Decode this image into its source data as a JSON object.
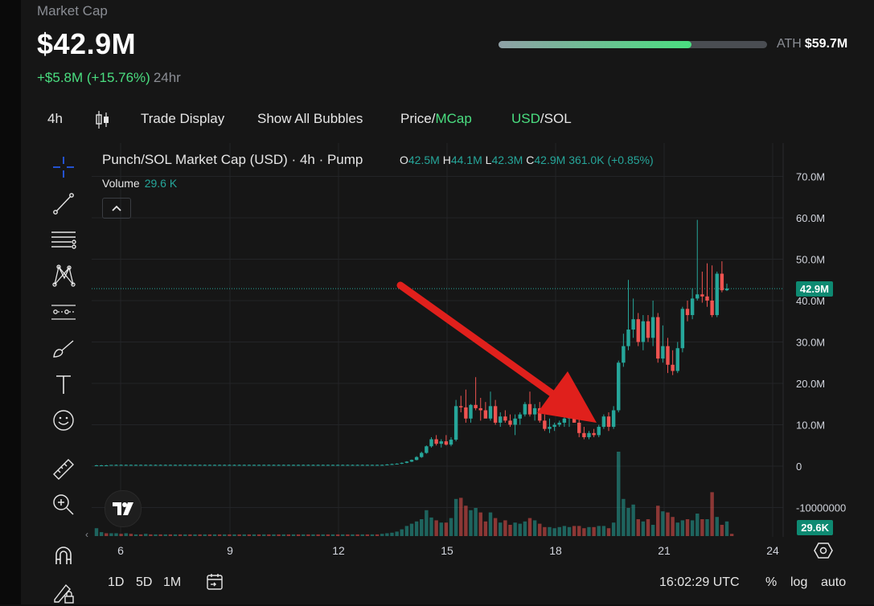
{
  "header": {
    "label": "Market Cap",
    "value": "$42.9M",
    "change": "+$5.8M (+15.76%)",
    "period": "24hr",
    "ath_label": "ATH",
    "ath_value": "$59.7M",
    "ath_progress": 0.72
  },
  "toolbar": {
    "interval": "4h",
    "trade_display": "Trade Display",
    "show_bubbles": "Show All Bubbles",
    "price_label": "Price/",
    "mcap_label": "MCap",
    "usd_label": "USD",
    "sol_label": "/SOL"
  },
  "legend": {
    "title": "Punch/SOL Market Cap (USD) · 4h · Pump",
    "o_label": "O",
    "o": "42.5M",
    "h_label": "H",
    "h": "44.1M",
    "l_label": "L",
    "l": "42.3M",
    "c_label": "C",
    "c": "42.9M",
    "chg": "361.0K (+0.85%)",
    "volume_label": "Volume",
    "volume": "29.6 K"
  },
  "price_tags": {
    "last": "42.9M",
    "volume": "29.6K"
  },
  "bottom": {
    "range_1d": "1D",
    "range_5d": "5D",
    "range_1m": "1M",
    "time": "16:02:29 UTC",
    "pct": "%",
    "log": "log",
    "auto": "auto"
  },
  "colors": {
    "up": "#26a69a",
    "down": "#ef5350",
    "accent": "#4ade80",
    "arrow": "#e0201c"
  },
  "chart_data": {
    "type": "candlestick",
    "x_tick_labels": [
      "6",
      "9",
      "12",
      "15",
      "18",
      "21",
      "24"
    ],
    "y_tick_labels": [
      "70.0M",
      "60.0M",
      "50.0M",
      "40.0M",
      "30.0M",
      "20.0M",
      "10.0M",
      "0",
      "-10000000"
    ],
    "ylim": [
      -15,
      72
    ],
    "last_value": 42.9,
    "candles": [
      [
        0,
        0.2,
        0.3,
        0.1,
        0.2
      ],
      [
        0,
        0.2,
        0.3,
        0.1,
        0.2
      ],
      [
        0,
        0.2,
        0.3,
        0.1,
        0.2
      ],
      [
        0,
        0.2,
        0.3,
        0.1,
        0.3
      ],
      [
        0,
        0.3,
        0.4,
        0.2,
        0.3
      ],
      [
        0,
        0.3,
        0.4,
        0.2,
        0.3
      ],
      [
        0,
        0.3,
        0.4,
        0.2,
        0.3
      ],
      [
        0,
        0.3,
        0.4,
        0.2,
        0.3
      ],
      [
        0,
        0.3,
        0.4,
        0.2,
        0.3
      ],
      [
        0,
        0.3,
        0.4,
        0.2,
        0.3
      ],
      [
        0,
        0.3,
        0.4,
        0.2,
        0.3
      ],
      [
        0,
        0.3,
        0.4,
        0.2,
        0.3
      ],
      [
        0,
        0.3,
        0.4,
        0.2,
        0.3
      ],
      [
        0,
        0.3,
        0.4,
        0.2,
        0.3
      ],
      [
        0,
        0.3,
        0.4,
        0.2,
        0.3
      ],
      [
        0,
        0.3,
        0.4,
        0.2,
        0.3
      ],
      [
        0,
        0.3,
        0.4,
        0.2,
        0.3
      ],
      [
        0,
        0.3,
        0.4,
        0.2,
        0.3
      ],
      [
        0,
        0.3,
        0.4,
        0.2,
        0.3
      ],
      [
        0,
        0.3,
        0.4,
        0.2,
        0.3
      ],
      [
        0,
        0.3,
        0.4,
        0.2,
        0.3
      ],
      [
        0,
        0.3,
        0.4,
        0.2,
        0.3
      ],
      [
        0,
        0.3,
        0.4,
        0.2,
        0.3
      ],
      [
        0,
        0.3,
        0.4,
        0.2,
        0.3
      ],
      [
        0,
        0.3,
        0.4,
        0.2,
        0.3
      ],
      [
        0,
        0.3,
        0.4,
        0.2,
        0.3
      ],
      [
        0,
        0.3,
        0.4,
        0.2,
        0.3
      ],
      [
        0,
        0.3,
        0.4,
        0.2,
        0.3
      ],
      [
        0,
        0.3,
        0.4,
        0.2,
        0.3
      ],
      [
        0,
        0.3,
        0.4,
        0.2,
        0.3
      ],
      [
        0,
        0.3,
        0.4,
        0.2,
        0.3
      ],
      [
        0,
        0.3,
        0.4,
        0.2,
        0.3
      ],
      [
        0,
        0.3,
        0.4,
        0.2,
        0.3
      ],
      [
        0,
        0.3,
        0.4,
        0.2,
        0.3
      ],
      [
        0,
        0.3,
        0.4,
        0.2,
        0.3
      ],
      [
        0,
        0.3,
        0.4,
        0.2,
        0.3
      ],
      [
        0,
        0.3,
        0.4,
        0.2,
        0.3
      ],
      [
        0,
        0.3,
        0.4,
        0.2,
        0.3
      ],
      [
        0,
        0.3,
        0.4,
        0.2,
        0.3
      ],
      [
        0,
        0.3,
        0.4,
        0.2,
        0.3
      ],
      [
        0,
        0.3,
        0.4,
        0.2,
        0.3
      ],
      [
        0,
        0.3,
        0.4,
        0.2,
        0.3
      ],
      [
        0,
        0.3,
        0.4,
        0.2,
        0.3
      ],
      [
        0,
        0.3,
        0.4,
        0.2,
        0.3
      ],
      [
        0,
        0.3,
        0.4,
        0.2,
        0.3
      ],
      [
        0,
        0.3,
        0.4,
        0.2,
        0.3
      ],
      [
        0,
        0.3,
        0.4,
        0.2,
        0.3
      ],
      [
        0,
        0.3,
        0.4,
        0.2,
        0.3
      ],
      [
        0,
        0.3,
        0.4,
        0.2,
        0.3
      ],
      [
        0,
        0.3,
        0.4,
        0.2,
        0.3
      ],
      [
        0,
        0.3,
        0.4,
        0.2,
        0.3
      ],
      [
        0,
        0.3,
        0.4,
        0.2,
        0.3
      ],
      [
        0,
        0.3,
        0.4,
        0.2,
        0.3
      ],
      [
        0,
        0.3,
        0.4,
        0.2,
        0.3
      ],
      [
        0,
        0.3,
        0.4,
        0.2,
        0.3
      ],
      [
        0,
        0.3,
        0.4,
        0.2,
        0.3
      ],
      [
        0,
        0.3,
        0.4,
        0.2,
        0.3
      ],
      [
        0,
        0.3,
        0.4,
        0.2,
        0.3
      ],
      [
        0,
        0.3,
        0.4,
        0.2,
        0.3
      ],
      [
        0,
        0.3,
        0.5,
        0.2,
        0.4
      ],
      [
        0,
        0.4,
        0.6,
        0.3,
        0.5
      ],
      [
        0,
        0.5,
        0.7,
        0.4,
        0.6
      ],
      [
        0,
        0.6,
        0.9,
        0.5,
        0.8
      ],
      [
        0,
        0.8,
        1.2,
        0.7,
        1.1
      ],
      [
        0,
        1.1,
        1.6,
        1.0,
        1.5
      ],
      [
        0,
        1.5,
        2.4,
        1.4,
        2.2
      ],
      [
        0,
        2.2,
        3.5,
        2.0,
        3.2
      ],
      [
        0,
        3.2,
        5.0,
        3.0,
        4.8
      ],
      [
        0,
        4.8,
        7.0,
        4.5,
        6.5
      ],
      [
        0,
        6.5,
        7.5,
        5.0,
        5.4
      ],
      [
        0,
        5.4,
        6.5,
        4.5,
        6.0
      ],
      [
        0,
        6.0,
        7.5,
        5.0,
        5.2
      ],
      [
        0,
        5.2,
        7.0,
        4.8,
        6.4
      ],
      [
        0,
        6.4,
        16.0,
        6.0,
        14.5
      ],
      [
        0,
        14.5,
        17.0,
        13.0,
        14.2
      ],
      [
        0,
        14.2,
        18.5,
        10.5,
        11.5
      ],
      [
        0,
        11.5,
        15.0,
        10.5,
        14.8
      ],
      [
        0,
        14.8,
        21.5,
        13.5,
        14.0
      ],
      [
        0,
        14.0,
        16.5,
        11.0,
        13.5
      ],
      [
        0,
        13.5,
        15.5,
        12.0,
        11.5
      ],
      [
        0,
        11.5,
        18.0,
        11.0,
        14.5
      ],
      [
        0,
        14.5,
        16.0,
        10.0,
        10.5
      ],
      [
        0,
        10.5,
        13.0,
        9.5,
        12.0
      ],
      [
        0,
        12.0,
        13.5,
        10.5,
        11.0
      ],
      [
        0,
        11.0,
        12.5,
        9.5,
        10.0
      ],
      [
        0,
        10.0,
        12.5,
        7.5,
        11.5
      ],
      [
        0,
        11.5,
        13.0,
        10.0,
        12.5
      ],
      [
        0,
        12.5,
        15.5,
        12.0,
        15.0
      ],
      [
        0,
        15.0,
        18.0,
        12.0,
        12.5
      ],
      [
        0,
        12.5,
        15.0,
        11.0,
        14.0
      ],
      [
        0,
        14.0,
        15.5,
        10.5,
        11.0
      ],
      [
        0,
        11.0,
        12.5,
        8.5,
        9.0
      ],
      [
        0,
        9.0,
        11.5,
        8.0,
        9.5
      ],
      [
        0,
        9.5,
        10.5,
        8.5,
        10.0
      ],
      [
        0,
        10.0,
        11.0,
        9.5,
        10.5
      ],
      [
        0,
        10.5,
        12.0,
        9.5,
        11.5
      ],
      [
        0,
        11.5,
        12.5,
        9.5,
        12.0
      ],
      [
        0,
        12.0,
        13.5,
        10.5,
        10.5
      ],
      [
        0,
        10.5,
        11.5,
        7.0,
        8.0
      ],
      [
        0,
        8.0,
        9.5,
        6.5,
        7.0
      ],
      [
        0,
        7.0,
        8.5,
        6.5,
        8.0
      ],
      [
        0,
        8.0,
        9.0,
        7.0,
        7.5
      ],
      [
        0,
        7.5,
        10.0,
        7.0,
        9.5
      ],
      [
        0,
        9.5,
        12.5,
        9.0,
        12.0
      ],
      [
        0,
        12.0,
        13.0,
        8.5,
        9.5
      ],
      [
        0,
        9.5,
        14.5,
        9.0,
        13.5
      ],
      [
        0,
        13.5,
        25.5,
        13.0,
        25.0
      ],
      [
        0,
        25.0,
        32.0,
        24.0,
        29.0
      ],
      [
        0,
        29.0,
        45.0,
        28.0,
        33.0
      ],
      [
        0,
        33.0,
        40.5,
        31.0,
        35.5
      ],
      [
        0,
        35.5,
        37.0,
        29.0,
        30.0
      ],
      [
        0,
        30.0,
        36.5,
        28.0,
        35.0
      ],
      [
        0,
        35.0,
        36.5,
        30.0,
        31.0
      ],
      [
        0,
        31.0,
        40.0,
        29.0,
        36.0
      ],
      [
        0,
        36.0,
        37.0,
        25.0,
        26.0
      ],
      [
        0,
        26.0,
        34.0,
        25.0,
        29.0
      ],
      [
        0,
        29.0,
        31.0,
        22.5,
        24.5
      ],
      [
        0,
        24.5,
        28.0,
        22.0,
        23.0
      ],
      [
        0,
        23.0,
        30.0,
        22.5,
        28.5
      ],
      [
        0,
        28.5,
        38.5,
        27.5,
        38.0
      ],
      [
        0,
        38.0,
        40.0,
        35.0,
        36.5
      ],
      [
        0,
        36.5,
        43.0,
        35.5,
        40.5
      ],
      [
        0,
        40.5,
        59.5,
        40.0,
        41.5
      ],
      [
        0,
        41.5,
        47.0,
        39.5,
        41.0
      ],
      [
        0,
        41.0,
        49.0,
        38.5,
        40.0
      ],
      [
        0,
        40.0,
        48.5,
        36.0,
        36.5
      ],
      [
        0,
        36.5,
        47.0,
        36.0,
        46.5
      ],
      [
        0,
        46.5,
        49.5,
        42.0,
        42.5
      ],
      [
        0,
        42.5,
        44.1,
        42.3,
        42.9
      ]
    ],
    "volume_scale": [
      0,
      12
    ],
    "volume": [
      [
        1,
        1.4
      ],
      [
        1,
        0.7
      ],
      [
        0,
        0.5
      ],
      [
        1,
        0.5
      ],
      [
        1,
        0.5
      ],
      [
        0,
        0.4
      ],
      [
        1,
        0.5
      ],
      [
        0,
        0.4
      ],
      [
        1,
        0.3
      ],
      [
        0,
        0.3
      ],
      [
        1,
        0.4
      ],
      [
        0,
        0.3
      ],
      [
        1,
        0.3
      ],
      [
        0,
        0.3
      ],
      [
        1,
        0.3
      ],
      [
        0,
        0.3
      ],
      [
        1,
        0.3
      ],
      [
        0,
        0.3
      ],
      [
        1,
        0.3
      ],
      [
        0,
        0.3
      ],
      [
        1,
        0.3
      ],
      [
        0,
        0.3
      ],
      [
        1,
        0.3
      ],
      [
        0,
        0.3
      ],
      [
        1,
        0.3
      ],
      [
        0,
        0.3
      ],
      [
        1,
        0.3
      ],
      [
        0,
        0.3
      ],
      [
        1,
        0.3
      ],
      [
        0,
        0.3
      ],
      [
        1,
        0.3
      ],
      [
        0,
        0.3
      ],
      [
        1,
        0.3
      ],
      [
        0,
        0.3
      ],
      [
        1,
        0.3
      ],
      [
        0,
        0.3
      ],
      [
        1,
        0.3
      ],
      [
        0,
        0.3
      ],
      [
        1,
        0.3
      ],
      [
        0,
        0.3
      ],
      [
        1,
        0.3
      ],
      [
        0,
        0.3
      ],
      [
        1,
        0.3
      ],
      [
        0,
        0.3
      ],
      [
        1,
        0.3
      ],
      [
        0,
        0.3
      ],
      [
        1,
        0.3
      ],
      [
        0,
        0.3
      ],
      [
        1,
        0.3
      ],
      [
        0,
        0.3
      ],
      [
        1,
        0.3
      ],
      [
        0,
        0.3
      ],
      [
        1,
        0.3
      ],
      [
        0,
        0.3
      ],
      [
        1,
        0.3
      ],
      [
        0,
        0.3
      ],
      [
        1,
        0.3
      ],
      [
        0,
        0.3
      ],
      [
        1,
        0.4
      ],
      [
        1,
        0.5
      ],
      [
        1,
        0.6
      ],
      [
        1,
        0.8
      ],
      [
        1,
        1.2
      ],
      [
        1,
        1.8
      ],
      [
        1,
        2.2
      ],
      [
        1,
        2.6
      ],
      [
        1,
        3.0
      ],
      [
        1,
        4.6
      ],
      [
        1,
        3.3
      ],
      [
        0,
        2.8
      ],
      [
        1,
        2.4
      ],
      [
        0,
        2.4
      ],
      [
        1,
        3.2
      ],
      [
        1,
        6.6
      ],
      [
        0,
        6.8
      ],
      [
        0,
        5.4
      ],
      [
        1,
        4.6
      ],
      [
        1,
        5.0
      ],
      [
        0,
        4.2
      ],
      [
        0,
        2.6
      ],
      [
        1,
        4.2
      ],
      [
        0,
        3.2
      ],
      [
        1,
        2.4
      ],
      [
        0,
        2.8
      ],
      [
        0,
        2.0
      ],
      [
        1,
        2.4
      ],
      [
        1,
        2.2
      ],
      [
        1,
        2.6
      ],
      [
        0,
        3.2
      ],
      [
        1,
        2.8
      ],
      [
        0,
        2.2
      ],
      [
        0,
        1.6
      ],
      [
        1,
        1.6
      ],
      [
        1,
        1.4
      ],
      [
        1,
        1.6
      ],
      [
        1,
        1.8
      ],
      [
        1,
        1.6
      ],
      [
        0,
        1.8
      ],
      [
        0,
        1.8
      ],
      [
        0,
        1.4
      ],
      [
        1,
        1.6
      ],
      [
        0,
        1.6
      ],
      [
        1,
        1.8
      ],
      [
        1,
        1.8
      ],
      [
        0,
        1.4
      ],
      [
        1,
        2.4
      ],
      [
        1,
        15.0
      ],
      [
        1,
        6.6
      ],
      [
        1,
        5.0
      ],
      [
        1,
        5.6
      ],
      [
        0,
        3.0
      ],
      [
        1,
        2.6
      ],
      [
        0,
        3.0
      ],
      [
        1,
        2.0
      ],
      [
        0,
        5.4
      ],
      [
        1,
        4.4
      ],
      [
        0,
        4.2
      ],
      [
        0,
        3.4
      ],
      [
        1,
        2.4
      ],
      [
        1,
        2.8
      ],
      [
        0,
        3.0
      ],
      [
        1,
        2.8
      ],
      [
        1,
        4.0
      ],
      [
        0,
        3.0
      ],
      [
        1,
        3.0
      ],
      [
        0,
        7.8
      ],
      [
        1,
        3.4
      ],
      [
        0,
        2.0
      ],
      [
        1,
        2.6
      ],
      [
        0,
        0.4
      ]
    ]
  }
}
